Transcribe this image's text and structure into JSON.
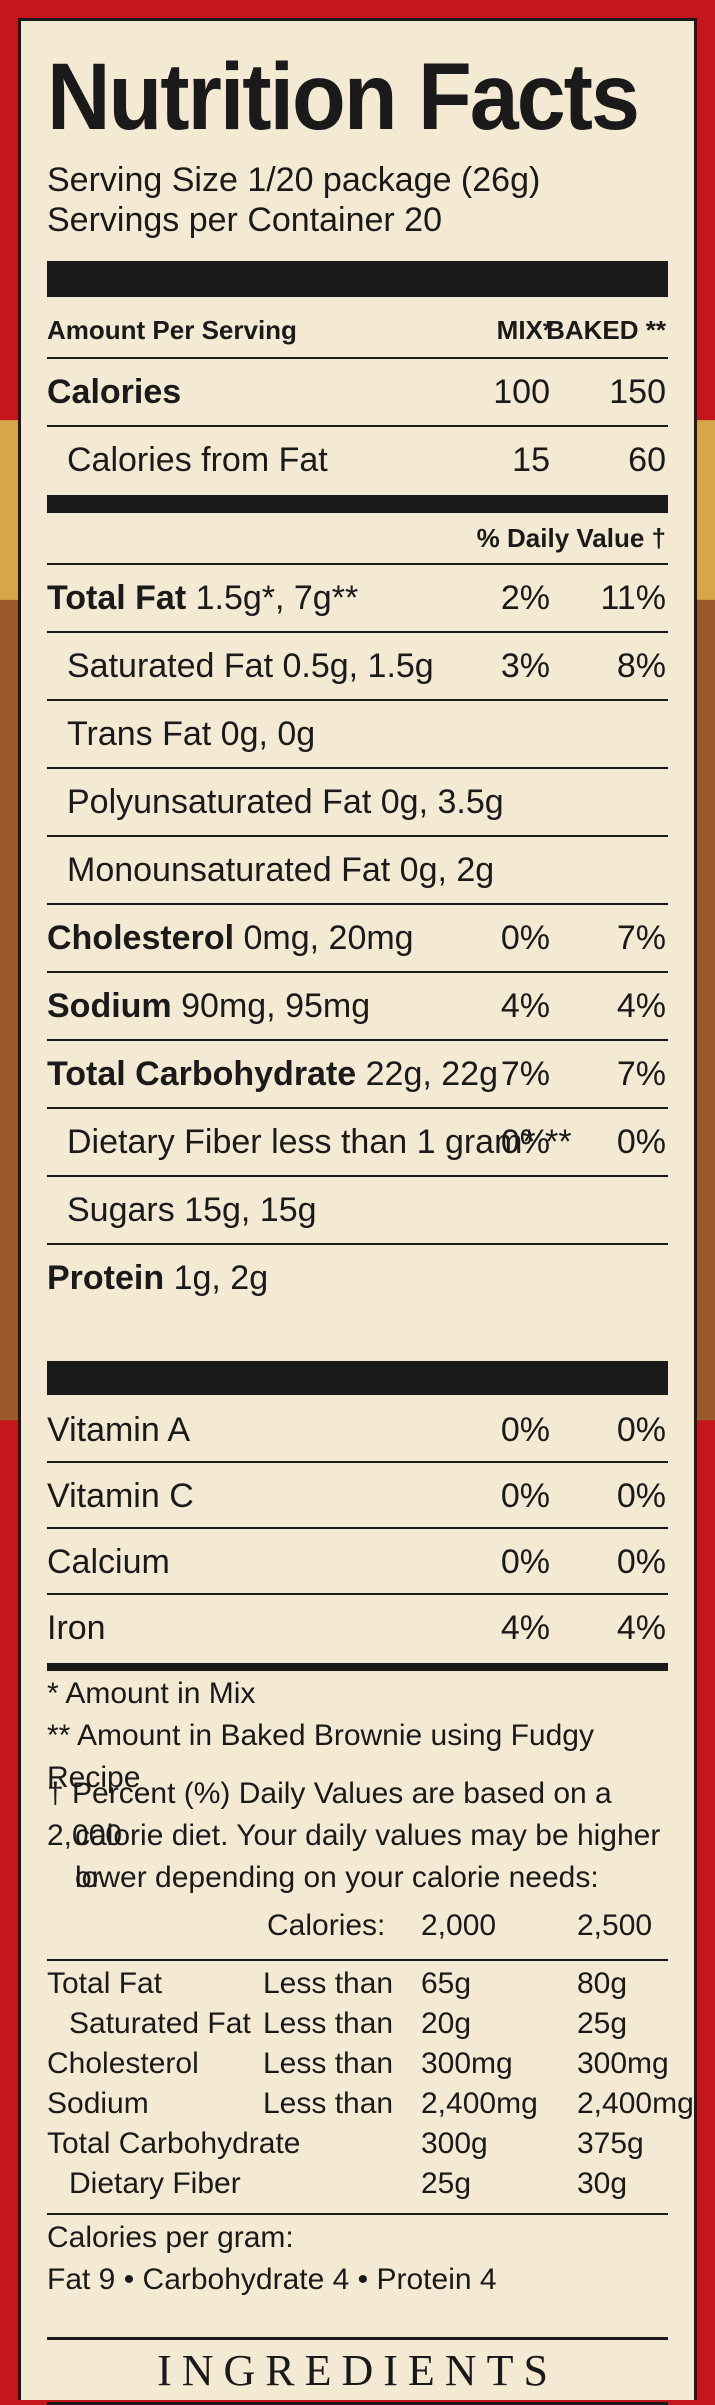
{
  "label": {
    "title": "Nutrition Facts",
    "serving_size": "Serving Size 1/20 package (26g)",
    "servings_per_container": "Servings per Container 20",
    "amount_per_serving": "Amount Per Serving",
    "col_mix": "MIX*",
    "col_baked": "BAKED **",
    "daily_value_header": "% Daily Value †",
    "calories": {
      "label": "Calories",
      "mix": "100",
      "baked": "150"
    },
    "calories_from_fat": {
      "label": "Calories from Fat",
      "mix": "15",
      "baked": "60"
    },
    "nutrients": [
      {
        "name": "Total Fat",
        "amount": "1.5g*, 7g**",
        "mix": "2%",
        "baked": "11%",
        "bold": true,
        "indent": false
      },
      {
        "name": "Saturated Fat",
        "amount": "0.5g, 1.5g",
        "mix": "3%",
        "baked": "8%",
        "bold": false,
        "indent": true
      },
      {
        "name": "Trans Fat",
        "amount": "0g, 0g",
        "mix": "",
        "baked": "",
        "bold": false,
        "indent": true
      },
      {
        "name": "Polyunsaturated Fat",
        "amount": "0g, 3.5g",
        "mix": "",
        "baked": "",
        "bold": false,
        "indent": true
      },
      {
        "name": "Monounsaturated Fat",
        "amount": "0g, 2g",
        "mix": "",
        "baked": "",
        "bold": false,
        "indent": true
      },
      {
        "name": "Cholesterol",
        "amount": "0mg, 20mg",
        "mix": "0%",
        "baked": "7%",
        "bold": true,
        "indent": false
      },
      {
        "name": "Sodium",
        "amount": "90mg, 95mg",
        "mix": "4%",
        "baked": "4%",
        "bold": true,
        "indent": false
      },
      {
        "name": "Total Carbohydrate",
        "amount": "22g, 22g",
        "mix": "7%",
        "baked": "7%",
        "bold": true,
        "indent": false
      },
      {
        "name": "Dietary Fiber",
        "amount": "less than 1 gram* **",
        "mix": "0%",
        "baked": "0%",
        "bold": false,
        "indent": true
      },
      {
        "name": "Sugars",
        "amount": "15g, 15g",
        "mix": "",
        "baked": "",
        "bold": false,
        "indent": true
      },
      {
        "name": "Protein",
        "amount": "1g, 2g",
        "mix": "",
        "baked": "",
        "bold": true,
        "indent": false
      }
    ],
    "vitamins": [
      {
        "name": "Vitamin A",
        "mix": "0%",
        "baked": "0%"
      },
      {
        "name": "Vitamin C",
        "mix": "0%",
        "baked": "0%"
      },
      {
        "name": "Calcium",
        "mix": "0%",
        "baked": "0%"
      },
      {
        "name": "Iron",
        "mix": "4%",
        "baked": "4%"
      }
    ],
    "footnotes": {
      "mix": "*  Amount in Mix",
      "baked": "** Amount in Baked Brownie using Fudgy Recipe",
      "dv_1": "† Percent (%) Daily Values are based on a 2,000",
      "dv_2": "calorie diet. Your daily values may be higher or",
      "dv_3": "lower depending on your calorie needs:"
    },
    "dv_table": {
      "header": {
        "label": "Calories:",
        "c1": "2,000",
        "c2": "2,500"
      },
      "rows": [
        {
          "name": "Total Fat",
          "qual": "Less than",
          "c1": "65g",
          "c2": "80g",
          "indent": false
        },
        {
          "name": "Saturated Fat",
          "qual": "Less than",
          "c1": "20g",
          "c2": "25g",
          "indent": true
        },
        {
          "name": "Cholesterol",
          "qual": "Less than",
          "c1": "300mg",
          "c2": "300mg",
          "indent": false
        },
        {
          "name": "Sodium",
          "qual": "Less than",
          "c1": "2,400mg",
          "c2": "2,400mg",
          "indent": false
        },
        {
          "name": "Total Carbohydrate",
          "qual": "",
          "c1": "300g",
          "c2": "375g",
          "indent": false
        },
        {
          "name": "Dietary Fiber",
          "qual": "",
          "c1": "25g",
          "c2": "30g",
          "indent": true
        }
      ]
    },
    "cal_per_gram_1": "Calories per gram:",
    "cal_per_gram_2": "Fat 9 • Carbohydrate 4 • Protein 4",
    "ingredients_heading": "INGREDIENTS"
  },
  "colors": {
    "box_red": "#c4161c",
    "label_bg": "#f4ead4",
    "ink": "#1a1a1a"
  }
}
